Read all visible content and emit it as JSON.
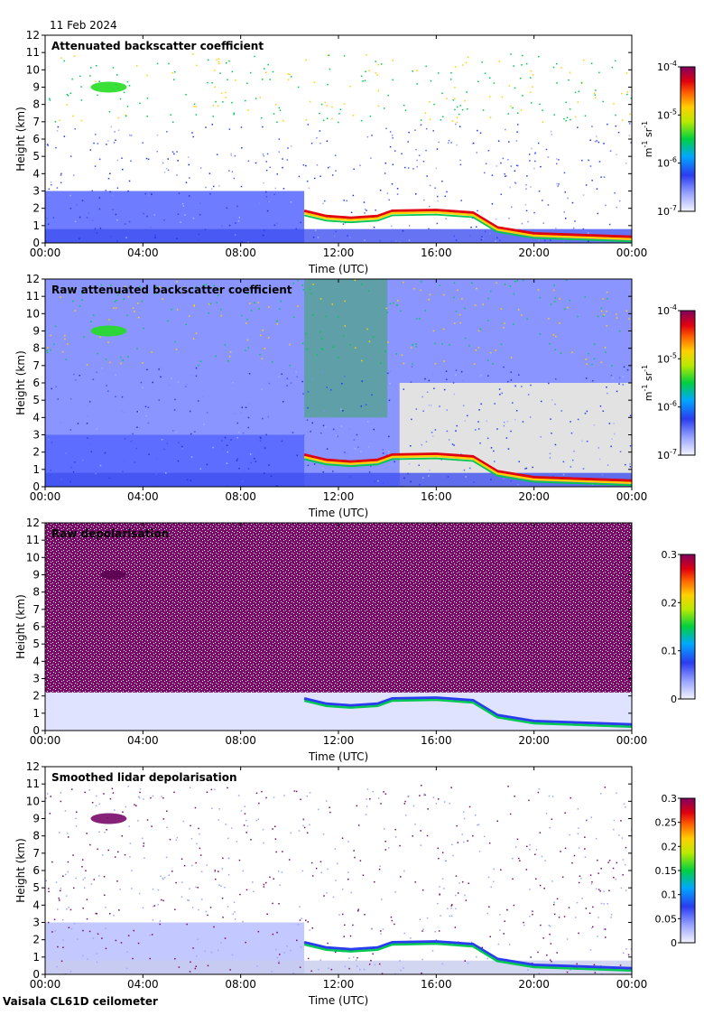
{
  "date_label": "11 Feb 2024",
  "footer": "Vaisala CL61D ceilometer",
  "chart_data": [
    {
      "type": "heatmap",
      "title": "Attenuated backscatter coefficient",
      "xlabel": "Time (UTC)",
      "ylabel": "Height (km)",
      "x_ticks": [
        "00:00",
        "04:00",
        "08:00",
        "12:00",
        "16:00",
        "20:00",
        "00:00"
      ],
      "y_ticks": [
        "0",
        "1",
        "2",
        "3",
        "4",
        "5",
        "6",
        "7",
        "8",
        "9",
        "10",
        "11",
        "12"
      ],
      "ylim": [
        0,
        12
      ],
      "xlim_hours": [
        0,
        24
      ],
      "colorbar": {
        "scale": "log",
        "tick_labels": [
          {
            "base": "10",
            "exp": "-4"
          },
          {
            "base": "10",
            "exp": "-5"
          },
          {
            "base": "10",
            "exp": "-6"
          },
          {
            "base": "10",
            "exp": "-7"
          }
        ],
        "unit_label": {
          "m": "m",
          "m_exp": "-1",
          "sr": " sr",
          "sr_exp": "-1"
        }
      }
    },
    {
      "type": "heatmap",
      "title": "Raw attenuated backscatter coefficient",
      "xlabel": "Time (UTC)",
      "ylabel": "Height (km)",
      "x_ticks": [
        "00:00",
        "04:00",
        "08:00",
        "12:00",
        "16:00",
        "20:00",
        "00:00"
      ],
      "y_ticks": [
        "0",
        "1",
        "2",
        "3",
        "4",
        "5",
        "6",
        "7",
        "8",
        "9",
        "10",
        "11",
        "12"
      ],
      "ylim": [
        0,
        12
      ],
      "xlim_hours": [
        0,
        24
      ],
      "colorbar": {
        "scale": "log",
        "tick_labels": [
          {
            "base": "10",
            "exp": "-4"
          },
          {
            "base": "10",
            "exp": "-5"
          },
          {
            "base": "10",
            "exp": "-6"
          },
          {
            "base": "10",
            "exp": "-7"
          }
        ],
        "unit_label": {
          "m": "m",
          "m_exp": "-1",
          "sr": " sr",
          "sr_exp": "-1"
        }
      }
    },
    {
      "type": "heatmap",
      "title": "Raw depolarisation",
      "xlabel": "Time (UTC)",
      "ylabel": "Height (km)",
      "x_ticks": [
        "00:00",
        "04:00",
        "08:00",
        "12:00",
        "16:00",
        "20:00",
        "00:00"
      ],
      "y_ticks": [
        "0",
        "1",
        "2",
        "3",
        "4",
        "5",
        "6",
        "7",
        "8",
        "9",
        "10",
        "11",
        "12"
      ],
      "ylim": [
        0,
        12
      ],
      "xlim_hours": [
        0,
        24
      ],
      "colorbar": {
        "scale": "linear",
        "range": [
          0,
          0.3
        ],
        "tick_labels": [
          "0.3",
          "0.2",
          "0.1",
          "0"
        ]
      }
    },
    {
      "type": "heatmap",
      "title": "Smoothed lidar depolarisation",
      "xlabel": "Time (UTC)",
      "ylabel": "Height (km)",
      "x_ticks": [
        "00:00",
        "04:00",
        "08:00",
        "12:00",
        "16:00",
        "20:00",
        "00:00"
      ],
      "y_ticks": [
        "0",
        "1",
        "2",
        "3",
        "4",
        "5",
        "6",
        "7",
        "8",
        "9",
        "10",
        "11",
        "12"
      ],
      "ylim": [
        0,
        12
      ],
      "xlim_hours": [
        0,
        24
      ],
      "colorbar": {
        "scale": "linear",
        "range": [
          0,
          0.3
        ],
        "tick_labels": [
          "0.3",
          "0.25",
          "0.2",
          "0.15",
          "0.1",
          "0.05",
          "0"
        ]
      }
    }
  ]
}
